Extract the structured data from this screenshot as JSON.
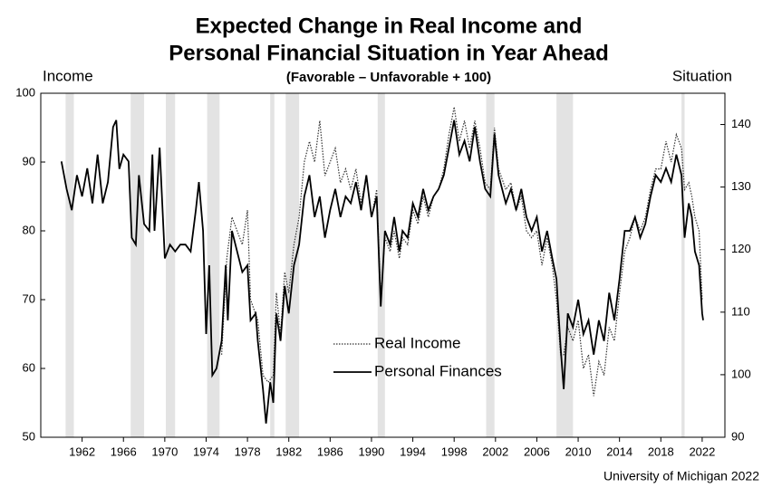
{
  "chart_data": {
    "type": "line",
    "title": [
      "Expected Change in Real Income and",
      "Personal Financial Situation in Year Ahead"
    ],
    "subtitle": "(Favorable – Unfavorable + 100)",
    "y_label": "Income",
    "y2_label": "Situation",
    "source": "University of Michigan 2022",
    "xlim": [
      1958,
      2024.2
    ],
    "xticks": [
      1962,
      1966,
      1970,
      1974,
      1978,
      1982,
      1986,
      1990,
      1994,
      1998,
      2002,
      2006,
      2010,
      2014,
      2018,
      2022
    ],
    "ylim": [
      50,
      100
    ],
    "yticks": [
      50,
      60,
      70,
      80,
      90,
      100
    ],
    "y2lim": [
      90,
      145
    ],
    "y2ticks": [
      90,
      100,
      110,
      120,
      130,
      140
    ],
    "shaded_periods": [
      [
        1960.4,
        1961.2
      ],
      [
        1966.7,
        1968.0
      ],
      [
        1970.1,
        1971.0
      ],
      [
        1974.1,
        1975.3
      ],
      [
        1980.2,
        1980.6
      ],
      [
        1981.7,
        1983.0
      ],
      [
        1990.6,
        1991.3
      ],
      [
        2001.1,
        2001.9
      ],
      [
        2007.9,
        2009.5
      ],
      [
        2020.0,
        2020.3
      ]
    ],
    "shade_color": "#e3e3e3",
    "series": [
      {
        "name": "Real Income",
        "color": "#333333",
        "dash": "dotted",
        "axis": "y",
        "x": [
          1975.5,
          1976,
          1976.5,
          1977,
          1977.5,
          1978,
          1978.3,
          1979,
          1979.5,
          1980,
          1980.5,
          1980.8,
          1981.2,
          1981.6,
          1982,
          1982.5,
          1983,
          1983.5,
          1984,
          1984.5,
          1985,
          1985.5,
          1986,
          1986.5,
          1987,
          1987.5,
          1988,
          1988.5,
          1989,
          1989.5,
          1990,
          1990.5,
          1990.9,
          1991.3,
          1991.8,
          1992.2,
          1992.7,
          1993,
          1993.5,
          1994,
          1994.5,
          1995,
          1995.5,
          1996,
          1996.5,
          1997,
          1997.5,
          1998,
          1998.5,
          1999,
          1999.5,
          2000,
          2000.5,
          2001,
          2001.5,
          2001.9,
          2002.3,
          2003,
          2003.5,
          2004,
          2004.5,
          2005,
          2005.5,
          2006,
          2006.5,
          2007,
          2007.5,
          2007.9,
          2008.3,
          2008.6,
          2009,
          2009.5,
          2010,
          2010.5,
          2011,
          2011.5,
          2012,
          2012.5,
          2013,
          2013.5,
          2014,
          2014.5,
          2015,
          2015.5,
          2016,
          2016.5,
          2017,
          2017.5,
          2018,
          2018.5,
          2019,
          2019.5,
          2020,
          2020.3,
          2020.7,
          2021,
          2021.3,
          2021.7,
          2022
        ],
        "values": [
          62,
          76,
          82,
          80,
          78,
          83,
          70,
          67,
          59,
          58,
          59,
          71,
          65,
          74,
          71,
          78,
          82,
          90,
          93,
          90,
          96,
          88,
          90,
          92,
          87,
          89,
          86,
          89,
          84,
          88,
          82,
          86,
          70,
          79,
          77,
          80,
          76,
          79,
          78,
          83,
          81,
          85,
          82,
          85,
          86,
          89,
          94,
          98,
          93,
          96,
          92,
          96,
          92,
          87,
          86,
          95,
          89,
          86,
          87,
          83,
          85,
          80,
          79,
          80,
          75,
          79,
          75,
          70,
          62,
          62,
          66,
          64,
          67,
          60,
          62,
          56,
          61,
          59,
          66,
          64,
          71,
          77,
          79,
          82,
          80,
          82,
          86,
          89,
          89,
          93,
          90,
          94,
          92,
          86,
          87,
          85,
          82,
          80,
          70
        ]
      },
      {
        "name": "Personal Finances",
        "color": "#000000",
        "dash": "solid",
        "axis": "y2",
        "x": [
          1960,
          1960.5,
          1961,
          1961.5,
          1962,
          1962.5,
          1963,
          1963.5,
          1964,
          1964.5,
          1965,
          1965.3,
          1965.6,
          1966,
          1966.5,
          1966.8,
          1967.2,
          1967.5,
          1968,
          1968.5,
          1968.8,
          1969,
          1969.5,
          1970,
          1970.5,
          1971,
          1971.5,
          1972,
          1972.5,
          1973,
          1973.3,
          1973.7,
          1974,
          1974.3,
          1974.6,
          1975,
          1975.5,
          1975.9,
          1976.1,
          1976.5,
          1977,
          1977.5,
          1978,
          1978.3,
          1978.8,
          1979,
          1979.5,
          1979.8,
          1980.2,
          1980.5,
          1980.8,
          1981.2,
          1981.6,
          1982,
          1982.5,
          1983,
          1983.5,
          1984,
          1984.5,
          1985,
          1985.5,
          1986,
          1986.5,
          1987,
          1987.5,
          1988,
          1988.5,
          1989,
          1989.5,
          1990,
          1990.5,
          1990.9,
          1991.3,
          1991.8,
          1992.2,
          1992.7,
          1993,
          1993.5,
          1994,
          1994.5,
          1995,
          1995.5,
          1996,
          1996.5,
          1997,
          1997.5,
          1998,
          1998.5,
          1999,
          1999.5,
          2000,
          2000.5,
          2001,
          2001.5,
          2001.9,
          2002.3,
          2003,
          2003.5,
          2004,
          2004.5,
          2005,
          2005.5,
          2006,
          2006.5,
          2007,
          2007.5,
          2007.9,
          2008.3,
          2008.6,
          2009,
          2009.5,
          2010,
          2010.5,
          2011,
          2011.5,
          2012,
          2012.5,
          2013,
          2013.5,
          2014,
          2014.5,
          2015,
          2015.5,
          2016,
          2016.5,
          2017,
          2017.5,
          2018,
          2018.5,
          2019,
          2019.5,
          2020,
          2020.3,
          2020.7,
          2021,
          2021.3,
          2021.7,
          2022,
          2022.1
        ],
        "values": [
          134.1,
          129.7,
          126.3,
          131.9,
          128.5,
          133,
          127.4,
          135.2,
          127.4,
          130.8,
          139.6,
          140.7,
          132.9,
          135.2,
          134.1,
          121.9,
          120.8,
          131.9,
          124.1,
          123,
          135.2,
          123,
          136.3,
          118.6,
          120.8,
          119.7,
          120.8,
          120.8,
          119.7,
          126.3,
          130.8,
          123,
          106.5,
          117.5,
          99.9,
          101,
          105.4,
          117.5,
          108.7,
          123,
          119.7,
          116.4,
          117.5,
          108.7,
          109.8,
          105.4,
          97.7,
          92.2,
          98.8,
          95.5,
          109.8,
          105.4,
          114.2,
          109.8,
          117.5,
          120.8,
          128.5,
          131.9,
          125.2,
          128.5,
          121.9,
          126.3,
          129.7,
          125.2,
          128.5,
          127.4,
          130.8,
          126.3,
          131.9,
          125.2,
          128.5,
          110.9,
          123,
          120.8,
          125.2,
          119.7,
          123,
          121.9,
          127.4,
          125.2,
          129.7,
          126.3,
          128.5,
          129.7,
          131.9,
          136.3,
          140.7,
          135.2,
          137.4,
          134.1,
          139.6,
          134.1,
          129.7,
          128.5,
          138.5,
          131.9,
          127.4,
          129.7,
          126.3,
          129.7,
          125.2,
          123,
          125.2,
          119.7,
          123,
          118.6,
          115.3,
          104.3,
          97.7,
          109.8,
          107.6,
          112,
          106.5,
          108.7,
          103.2,
          108.7,
          105.4,
          113.1,
          108.7,
          115.3,
          123,
          123,
          125.2,
          121.9,
          124.1,
          128.5,
          131.9,
          130.8,
          133,
          130.8,
          135.2,
          131.9,
          121.9,
          127.4,
          125.2,
          119.7,
          117.5,
          109.8,
          108.7
        ]
      }
    ]
  }
}
